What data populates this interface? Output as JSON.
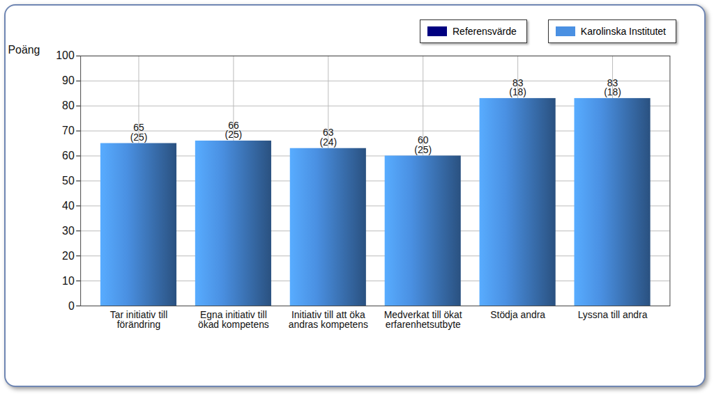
{
  "chart_data": {
    "type": "bar",
    "y_label": "Poäng",
    "categories": [
      "Tar initiativ till förändring",
      "Egna initiativ till ökad kompetens",
      "Initiativ till att öka andras kompetens",
      "Medverkat till ökat erfarenhetsutbyte",
      "Stödja andra",
      "Lyssna till andra"
    ],
    "series": [
      {
        "name": "Referensvärde",
        "color": "#000080",
        "values": [
          null,
          null,
          null,
          null,
          null,
          null
        ]
      },
      {
        "name": "Karolinska Institutet",
        "color": "#4a90e2",
        "values": [
          65,
          66,
          63,
          60,
          83,
          83
        ],
        "sd_labels": [
          "(25)",
          "(25)",
          "(24)",
          "(25)",
          "(18)",
          "(18)"
        ]
      }
    ],
    "ylim": [
      0,
      100
    ],
    "yticks": [
      0,
      10,
      20,
      30,
      40,
      50,
      60,
      70,
      80,
      90,
      100
    ],
    "grid": true,
    "legend": "top-right",
    "data_labels": true
  }
}
